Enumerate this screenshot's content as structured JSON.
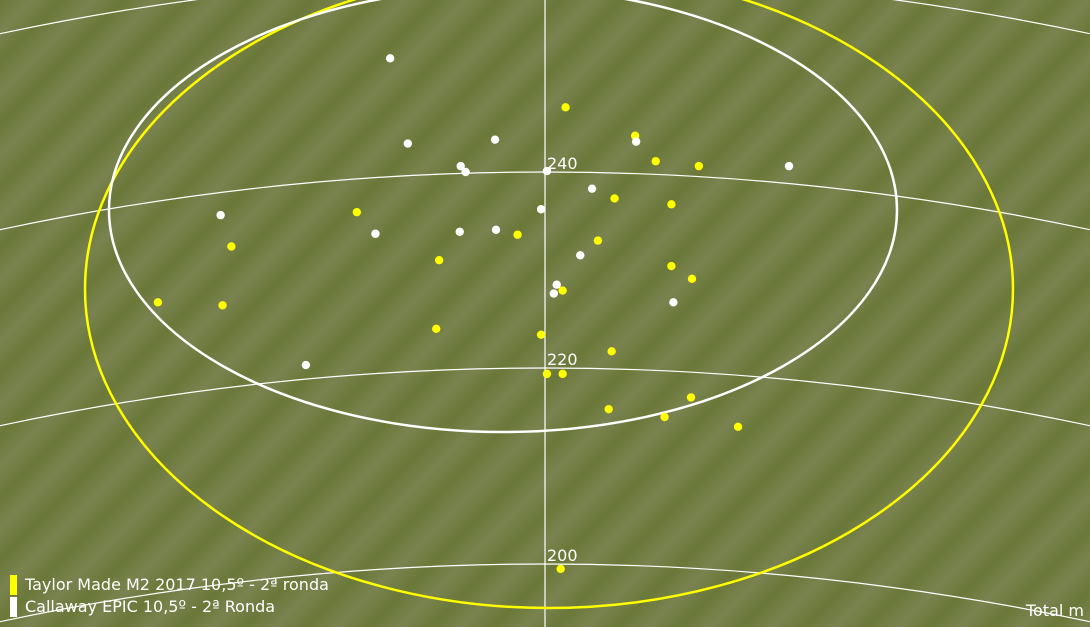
{
  "chart_data": {
    "type": "scatter",
    "title": "",
    "xlabel": "",
    "ylabel": "Total m",
    "distance_ticks": [
      200,
      220,
      240,
      260
    ],
    "distance_labels": [
      "200",
      "220",
      "240"
    ],
    "grid": true,
    "legend_position": "bottom-left",
    "series": [
      {
        "name": "Taylor Made M2 2017 10,5º - 2ª ronda",
        "color": "#ffff00",
        "lateral": [
          2.1,
          9.2,
          11.3,
          15.7,
          7.1,
          12.9,
          -19.2,
          -2.8,
          5.4,
          -32.0,
          -10.8,
          12.9,
          15.0,
          1.8,
          -39.5,
          -32.9,
          -11.1,
          -0.4,
          6.8,
          0.2,
          1.8,
          6.5,
          14.9,
          12.2,
          19.7,
          1.6
        ],
        "total": [
          246.6,
          243.7,
          241.1,
          240.6,
          237.3,
          236.7,
          235.9,
          233.6,
          233.0,
          232.4,
          231.0,
          230.4,
          229.1,
          227.9,
          226.7,
          226.4,
          224.0,
          223.4,
          221.7,
          219.4,
          219.4,
          215.8,
          217.0,
          215.0,
          214.0,
          199.5
        ]
      },
      {
        "name": "Callaway EPIC 10,5º - 2ª Ronda",
        "color": "#ffffff",
        "lateral": [
          -15.8,
          -14.0,
          -5.1,
          -8.6,
          -8.1,
          9.3,
          24.9,
          0.2,
          4.8,
          -0.4,
          -33.1,
          -17.3,
          -8.7,
          -5.0,
          3.6,
          1.2,
          0.9,
          13.1,
          -24.4
        ],
        "total": [
          251.6,
          242.9,
          243.3,
          240.6,
          240.0,
          243.1,
          240.6,
          240.1,
          238.3,
          236.2,
          235.6,
          233.7,
          233.9,
          234.1,
          231.5,
          228.5,
          227.6,
          226.7,
          220.3
        ]
      }
    ]
  },
  "axis_unit_label": "Total m"
}
